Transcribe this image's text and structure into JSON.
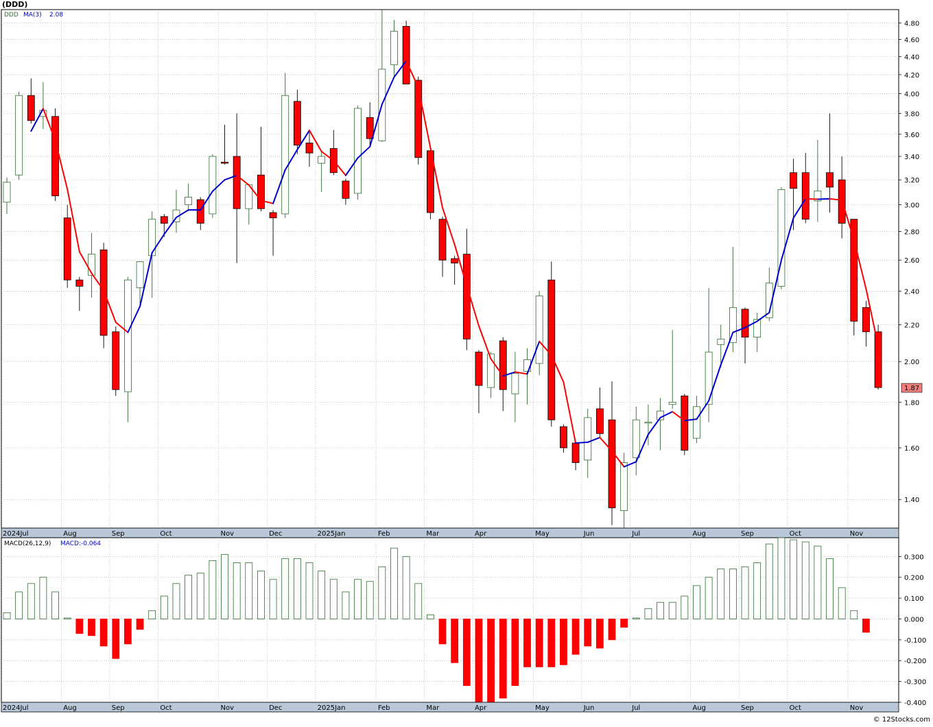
{
  "header": {
    "symbol_title": "(DDD)"
  },
  "price_panel": {
    "legend_symbol": "DDD",
    "legend_ma_label": "MA(3)",
    "legend_ma_value": "2.08",
    "last_price_label": "1.87",
    "last_price_color": "#f08080",
    "y_ticks": [
      "1.40",
      "1.60",
      "1.80",
      "2.00",
      "2.20",
      "2.40",
      "2.60",
      "2.80",
      "3.00",
      "3.20",
      "3.40",
      "3.60",
      "3.80",
      "4.00",
      "4.20",
      "4.40",
      "4.60",
      "4.80"
    ]
  },
  "macd_panel": {
    "legend_label": "MACD(26,12,9)",
    "legend_value": "MACD:-0.064",
    "y_ticks": [
      "-0.400",
      "-0.300",
      "-0.200",
      "-0.100",
      "0.000",
      "0.100",
      "0.200",
      "0.300"
    ]
  },
  "x_axis_labels": [
    "2024Jul",
    "Aug",
    "Sep",
    "Oct",
    "Nov",
    "Dec",
    "2025Jan",
    "Feb",
    "Mar",
    "Apr",
    "May",
    "Jun",
    "Jul",
    "Aug",
    "Sep",
    "Oct",
    "Nov"
  ],
  "footer": {
    "watermark": "© 12Stocks.com"
  },
  "colors": {
    "up": "#2e6b2e",
    "down": "#ff0000",
    "ma_up": "#0000cc",
    "ma_down": "#ff0000",
    "grid": "#b0b0b0",
    "axis_band": "#b8c8d8"
  },
  "chart_data": [
    {
      "type": "candlestick",
      "title": "(DDD)",
      "scale": "log",
      "ylim": [
        1.3,
        4.97
      ],
      "ma_period": 3,
      "series": [
        {
          "date": "2024-07-01",
          "open": 3.02,
          "high": 3.22,
          "low": 2.93,
          "close": 3.18
        },
        {
          "date": "2024-07-08",
          "open": 3.24,
          "high": 4.02,
          "low": 3.2,
          "close": 3.98
        },
        {
          "date": "2024-07-15",
          "open": 3.98,
          "high": 4.16,
          "low": 3.7,
          "close": 3.73
        },
        {
          "date": "2024-07-22",
          "open": 3.77,
          "high": 4.12,
          "low": 3.65,
          "close": 3.83
        },
        {
          "date": "2024-07-29",
          "open": 3.77,
          "high": 3.85,
          "low": 3.03,
          "close": 3.07
        },
        {
          "date": "2024-08-05",
          "open": 2.9,
          "high": 3.0,
          "low": 2.42,
          "close": 2.47
        },
        {
          "date": "2024-08-12",
          "open": 2.47,
          "high": 2.49,
          "low": 2.28,
          "close": 2.43
        },
        {
          "date": "2024-08-19",
          "open": 2.5,
          "high": 2.79,
          "low": 2.36,
          "close": 2.64
        },
        {
          "date": "2024-08-26",
          "open": 2.67,
          "high": 2.72,
          "low": 2.07,
          "close": 2.14
        },
        {
          "date": "2024-09-02",
          "open": 2.16,
          "high": 2.19,
          "low": 1.83,
          "close": 1.86
        },
        {
          "date": "2024-09-09",
          "open": 1.85,
          "high": 2.49,
          "low": 1.71,
          "close": 2.47
        },
        {
          "date": "2024-09-16",
          "open": 2.42,
          "high": 2.59,
          "low": 2.32,
          "close": 2.59
        },
        {
          "date": "2024-09-23",
          "open": 2.63,
          "high": 2.95,
          "low": 2.36,
          "close": 2.89
        },
        {
          "date": "2024-09-30",
          "open": 2.91,
          "high": 2.93,
          "low": 2.76,
          "close": 2.86
        },
        {
          "date": "2024-10-07",
          "open": 2.87,
          "high": 3.12,
          "low": 2.79,
          "close": 2.96
        },
        {
          "date": "2024-10-14",
          "open": 3.0,
          "high": 3.17,
          "low": 2.95,
          "close": 3.06
        },
        {
          "date": "2024-10-21",
          "open": 3.04,
          "high": 3.06,
          "low": 2.81,
          "close": 2.86
        },
        {
          "date": "2024-10-28",
          "open": 2.93,
          "high": 3.42,
          "low": 2.9,
          "close": 3.4
        },
        {
          "date": "2024-11-04",
          "open": 3.35,
          "high": 3.69,
          "low": 3.33,
          "close": 3.34
        },
        {
          "date": "2024-11-11",
          "open": 3.4,
          "high": 3.8,
          "low": 2.58,
          "close": 2.97
        },
        {
          "date": "2024-11-18",
          "open": 2.97,
          "high": 3.16,
          "low": 2.85,
          "close": 3.16
        },
        {
          "date": "2024-11-25",
          "open": 3.24,
          "high": 3.67,
          "low": 2.95,
          "close": 2.97
        },
        {
          "date": "2024-12-02",
          "open": 2.94,
          "high": 2.96,
          "low": 2.63,
          "close": 2.9
        },
        {
          "date": "2024-12-09",
          "open": 2.93,
          "high": 4.22,
          "low": 2.9,
          "close": 3.98
        },
        {
          "date": "2024-12-16",
          "open": 3.92,
          "high": 4.04,
          "low": 3.42,
          "close": 3.5
        },
        {
          "date": "2024-12-23",
          "open": 3.52,
          "high": 3.62,
          "low": 3.31,
          "close": 3.43
        },
        {
          "date": "2024-12-30",
          "open": 3.34,
          "high": 3.45,
          "low": 3.1,
          "close": 3.4
        },
        {
          "date": "2025-01-06",
          "open": 3.47,
          "high": 3.64,
          "low": 3.24,
          "close": 3.26
        },
        {
          "date": "2025-01-13",
          "open": 3.19,
          "high": 3.21,
          "low": 3.0,
          "close": 3.05
        },
        {
          "date": "2025-01-20",
          "open": 3.09,
          "high": 3.88,
          "low": 3.04,
          "close": 3.85
        },
        {
          "date": "2025-01-27",
          "open": 3.76,
          "high": 3.91,
          "low": 3.48,
          "close": 3.56
        },
        {
          "date": "2025-02-03",
          "open": 3.54,
          "high": 4.97,
          "low": 3.53,
          "close": 4.26
        },
        {
          "date": "2025-02-10",
          "open": 4.31,
          "high": 4.84,
          "low": 4.16,
          "close": 4.7
        },
        {
          "date": "2025-02-17",
          "open": 4.76,
          "high": 4.83,
          "low": 4.11,
          "close": 4.1
        },
        {
          "date": "2025-02-24",
          "open": 4.14,
          "high": 4.18,
          "low": 3.33,
          "close": 3.39
        },
        {
          "date": "2025-03-03",
          "open": 3.45,
          "high": 3.46,
          "low": 2.89,
          "close": 2.94
        },
        {
          "date": "2025-03-10",
          "open": 2.89,
          "high": 2.91,
          "low": 2.49,
          "close": 2.6
        },
        {
          "date": "2025-03-17",
          "open": 2.61,
          "high": 2.63,
          "low": 2.44,
          "close": 2.58
        },
        {
          "date": "2025-03-24",
          "open": 2.64,
          "high": 2.82,
          "low": 2.06,
          "close": 2.12
        },
        {
          "date": "2025-03-31",
          "open": 2.05,
          "high": 2.06,
          "low": 1.75,
          "close": 1.88
        },
        {
          "date": "2025-04-07",
          "open": 1.87,
          "high": 2.05,
          "low": 1.82,
          "close": 2.04
        },
        {
          "date": "2025-04-14",
          "open": 2.11,
          "high": 2.13,
          "low": 1.76,
          "close": 1.86
        },
        {
          "date": "2025-04-21",
          "open": 1.84,
          "high": 2.05,
          "low": 1.71,
          "close": 1.94
        },
        {
          "date": "2025-04-28",
          "open": 1.95,
          "high": 2.07,
          "low": 1.79,
          "close": 2.01
        },
        {
          "date": "2025-05-05",
          "open": 1.99,
          "high": 2.4,
          "low": 1.93,
          "close": 2.37
        },
        {
          "date": "2025-05-12",
          "open": 2.47,
          "high": 2.59,
          "low": 1.69,
          "close": 1.72
        },
        {
          "date": "2025-05-19",
          "open": 1.69,
          "high": 1.7,
          "low": 1.58,
          "close": 1.6
        },
        {
          "date": "2025-05-26",
          "open": 1.62,
          "high": 1.63,
          "low": 1.51,
          "close": 1.54
        },
        {
          "date": "2025-06-02",
          "open": 1.55,
          "high": 1.77,
          "low": 1.48,
          "close": 1.73
        },
        {
          "date": "2025-06-09",
          "open": 1.77,
          "high": 1.87,
          "low": 1.64,
          "close": 1.66
        },
        {
          "date": "2025-06-16",
          "open": 1.72,
          "high": 1.9,
          "low": 1.31,
          "close": 1.37
        },
        {
          "date": "2025-06-23",
          "open": 1.36,
          "high": 1.58,
          "low": 1.3,
          "close": 1.54
        },
        {
          "date": "2025-06-30",
          "open": 1.56,
          "high": 1.78,
          "low": 1.49,
          "close": 1.72
        },
        {
          "date": "2025-07-07",
          "open": 1.71,
          "high": 1.79,
          "low": 1.61,
          "close": 1.71
        },
        {
          "date": "2025-07-14",
          "open": 1.72,
          "high": 1.82,
          "low": 1.59,
          "close": 1.76
        },
        {
          "date": "2025-07-21",
          "open": 1.79,
          "high": 2.17,
          "low": 1.77,
          "close": 1.8
        },
        {
          "date": "2025-07-28",
          "open": 1.83,
          "high": 1.84,
          "low": 1.57,
          "close": 1.59
        },
        {
          "date": "2025-08-04",
          "open": 1.64,
          "high": 1.83,
          "low": 1.62,
          "close": 1.78
        },
        {
          "date": "2025-08-11",
          "open": 1.79,
          "high": 2.42,
          "low": 1.71,
          "close": 2.05
        },
        {
          "date": "2025-08-18",
          "open": 2.09,
          "high": 2.2,
          "low": 1.97,
          "close": 2.12
        },
        {
          "date": "2025-08-25",
          "open": 2.1,
          "high": 2.69,
          "low": 2.05,
          "close": 2.3
        },
        {
          "date": "2025-09-01",
          "open": 2.29,
          "high": 2.3,
          "low": 1.99,
          "close": 2.13
        },
        {
          "date": "2025-09-08",
          "open": 2.13,
          "high": 2.27,
          "low": 2.05,
          "close": 2.23
        },
        {
          "date": "2025-09-15",
          "open": 2.24,
          "high": 2.55,
          "low": 2.22,
          "close": 2.45
        },
        {
          "date": "2025-09-22",
          "open": 2.43,
          "high": 3.14,
          "low": 2.41,
          "close": 3.12
        },
        {
          "date": "2025-09-29",
          "open": 3.26,
          "high": 3.38,
          "low": 2.81,
          "close": 3.13
        },
        {
          "date": "2025-10-06",
          "open": 3.26,
          "high": 3.43,
          "low": 2.86,
          "close": 2.89
        },
        {
          "date": "2025-10-13",
          "open": 3.03,
          "high": 3.55,
          "low": 2.87,
          "close": 3.11
        },
        {
          "date": "2025-10-20",
          "open": 3.26,
          "high": 3.8,
          "low": 2.94,
          "close": 3.14
        },
        {
          "date": "2025-10-27",
          "open": 3.2,
          "high": 3.4,
          "low": 2.75,
          "close": 2.86
        },
        {
          "date": "2025-11-03",
          "open": 2.89,
          "high": 2.89,
          "low": 2.14,
          "close": 2.22
        },
        {
          "date": "2025-11-10",
          "open": 2.3,
          "high": 2.34,
          "low": 2.08,
          "close": 2.16
        },
        {
          "date": "2025-11-17",
          "open": 2.16,
          "high": 2.2,
          "low": 1.86,
          "close": 1.87
        }
      ]
    },
    {
      "type": "bar",
      "title": "MACD(26,12,9)",
      "ylim": [
        -0.4,
        0.39
      ],
      "values": [
        0.03,
        0.13,
        0.17,
        0.2,
        0.13,
        0.005,
        -0.07,
        -0.08,
        -0.13,
        -0.19,
        -0.12,
        -0.05,
        0.04,
        0.11,
        0.17,
        0.21,
        0.22,
        0.28,
        0.31,
        0.27,
        0.27,
        0.23,
        0.19,
        0.29,
        0.29,
        0.27,
        0.23,
        0.19,
        0.13,
        0.19,
        0.18,
        0.25,
        0.34,
        0.3,
        0.17,
        0.02,
        -0.12,
        -0.21,
        -0.32,
        -0.4,
        -0.41,
        -0.38,
        -0.32,
        -0.23,
        -0.23,
        -0.23,
        -0.22,
        -0.17,
        -0.13,
        -0.14,
        -0.1,
        -0.04,
        0.005,
        0.05,
        0.08,
        0.08,
        0.11,
        0.16,
        0.2,
        0.24,
        0.24,
        0.25,
        0.27,
        0.36,
        0.39,
        0.38,
        0.37,
        0.35,
        0.29,
        0.15,
        0.04,
        -0.064
      ]
    }
  ]
}
